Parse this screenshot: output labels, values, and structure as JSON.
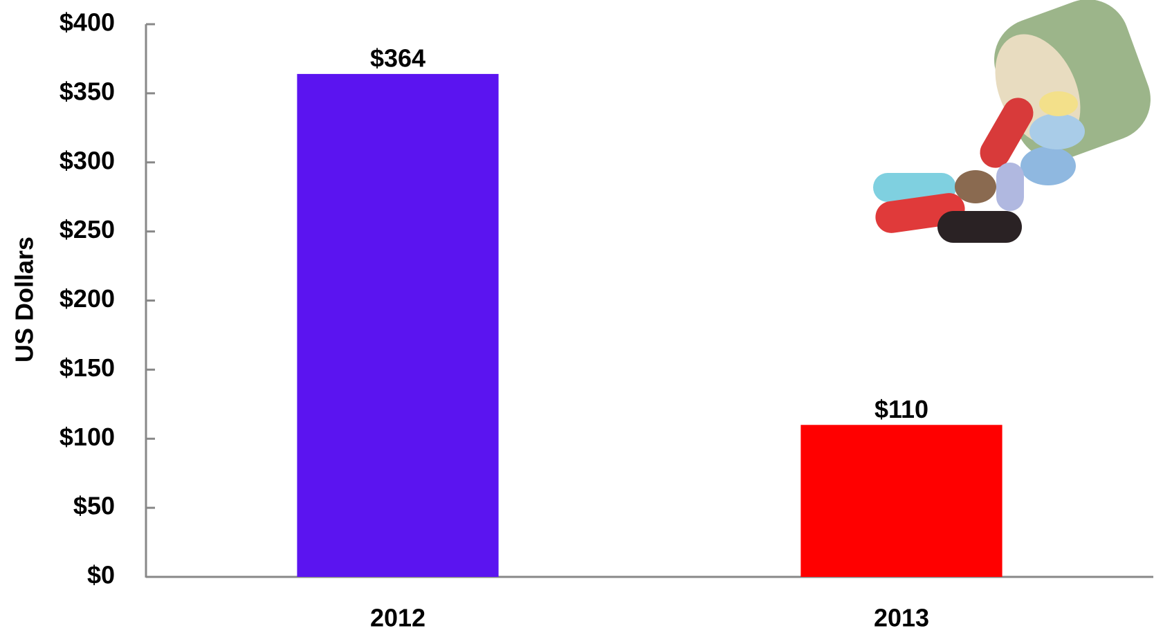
{
  "chart_data": {
    "type": "bar",
    "y_label": "US Dollars",
    "categories": [
      "2012",
      "2013"
    ],
    "values": [
      364,
      110
    ],
    "value_labels": [
      "$364",
      "$110"
    ],
    "colors": [
      "#5b14f0",
      "#ff0000"
    ],
    "ylim": [
      0,
      400
    ],
    "yticks": [
      {
        "value": 0,
        "label": "$0"
      },
      {
        "value": 50,
        "label": "$50"
      },
      {
        "value": 100,
        "label": "$100"
      },
      {
        "value": 150,
        "label": "$150"
      },
      {
        "value": 200,
        "label": "$200"
      },
      {
        "value": 250,
        "label": "$250"
      },
      {
        "value": 300,
        "label": "$300"
      },
      {
        "value": 350,
        "label": "$350"
      },
      {
        "value": 400,
        "label": "$400"
      }
    ],
    "grid": false
  }
}
